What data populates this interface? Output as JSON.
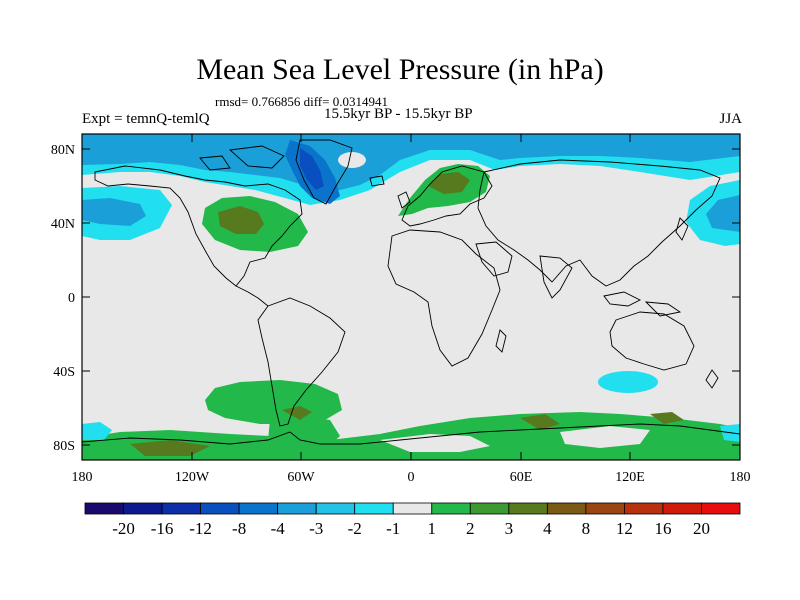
{
  "title": "Mean Sea Level Pressure (in hPa)",
  "stats": "rmsd= 0.766856 diff= 0.0314941",
  "subtitle": "15.5kyr BP - 15.5kyr BP",
  "left_string": "Expt = temnQ-temlQ",
  "right_string": "JJA",
  "lat_labels": [
    "80N",
    "40N",
    "0",
    "40S",
    "80S"
  ],
  "lon_labels": [
    "180",
    "120W",
    "60W",
    "0",
    "60E",
    "120E",
    "180"
  ],
  "colorbar": {
    "labels": [
      "-20",
      "-16",
      "-12",
      "-8",
      "-4",
      "-3",
      "-2",
      "-1",
      "1",
      "2",
      "3",
      "4",
      "8",
      "12",
      "16",
      "20"
    ],
    "colors": [
      "#1a0a6e",
      "#0d1a8f",
      "#0b2fa8",
      "#0a4fc0",
      "#0a74cc",
      "#1a9fd8",
      "#22c3e6",
      "#22dff0",
      "#e8e8e8",
      "#22b84a",
      "#3d9a32",
      "#587a1e",
      "#7a5a14",
      "#9a4512",
      "#b8300e",
      "#d01a0a",
      "#e80c0c"
    ]
  }
}
